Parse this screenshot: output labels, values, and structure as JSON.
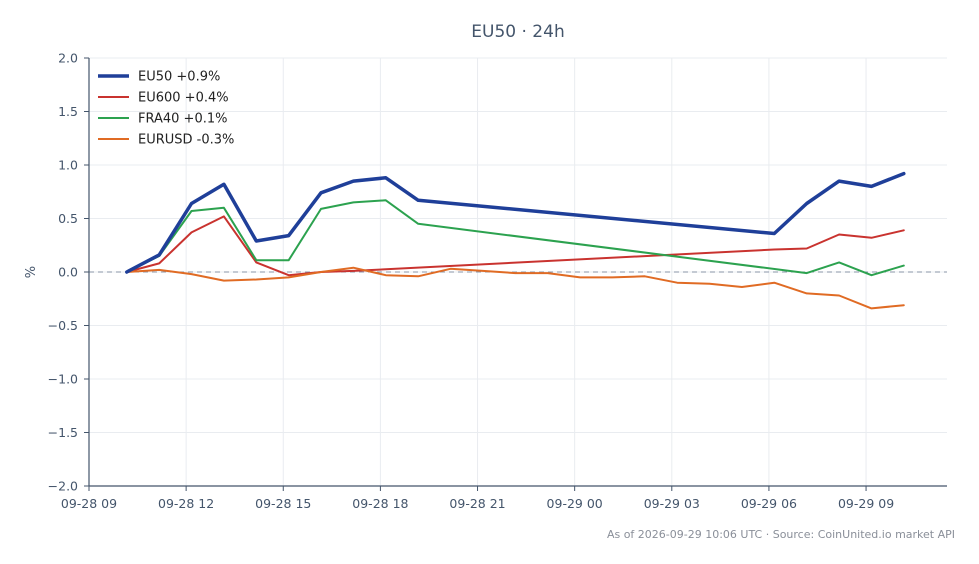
{
  "chart_data": {
    "type": "line",
    "title": "EU50 · 24h",
    "ylabel": "%",
    "xlabel": "",
    "ylim": [
      -2.0,
      2.0
    ],
    "yticks": [
      "2.0",
      "1.5",
      "1.0",
      "0.5",
      "0.0",
      "−0.5",
      "−1.0",
      "−1.5",
      "−2.0"
    ],
    "ytick_values": [
      2.0,
      1.5,
      1.0,
      0.5,
      0.0,
      -0.5,
      -1.0,
      -1.5,
      -2.0
    ],
    "xlim": [
      "09-28 09:00",
      "09-29 11:30"
    ],
    "xticks": [
      "09-28 09",
      "09-28 12",
      "09-28 15",
      "09-28 18",
      "09-28 21",
      "09-29 00",
      "09-29 03",
      "09-29 06",
      "09-29 09"
    ],
    "xtick_values": [
      "09-28 09:00",
      "09-28 12:00",
      "09-28 15:00",
      "09-28 18:00",
      "09-28 21:00",
      "09-29 00:00",
      "09-29 03:00",
      "09-29 06:00",
      "09-29 09:00"
    ],
    "grid": true,
    "legend_position": "top-left",
    "reference_line": 0.0,
    "series": [
      {
        "name": "EU50 +0.9%",
        "color": "#1f3f99",
        "width": "thick",
        "x": [
          "09-28 10:10",
          "09-28 11:10",
          "09-28 12:10",
          "09-28 13:10",
          "09-28 14:10",
          "09-28 15:10",
          "09-28 16:10",
          "09-28 17:10",
          "09-28 18:10",
          "09-28 19:10",
          "09-29 06:10",
          "09-29 07:10",
          "09-29 08:10",
          "09-29 09:10",
          "09-29 10:10"
        ],
        "y": [
          0.0,
          0.16,
          0.64,
          0.82,
          0.29,
          0.34,
          0.74,
          0.85,
          0.88,
          0.67,
          0.36,
          0.64,
          0.85,
          0.8,
          0.92
        ]
      },
      {
        "name": "EU600 +0.4%",
        "color": "#c9332f",
        "width": "normal",
        "x": [
          "09-28 10:10",
          "09-28 11:10",
          "09-28 12:10",
          "09-28 13:10",
          "09-28 14:10",
          "09-28 15:10",
          "09-28 16:10",
          "09-28 17:10",
          "09-29 06:10",
          "09-29 07:10",
          "09-29 08:10",
          "09-29 09:10",
          "09-29 10:10"
        ],
        "y": [
          0.0,
          0.08,
          0.37,
          0.52,
          0.09,
          -0.03,
          0.0,
          0.01,
          0.21,
          0.22,
          0.35,
          0.32,
          0.39
        ]
      },
      {
        "name": "FRA40 +0.1%",
        "color": "#2ca24f",
        "width": "normal",
        "x": [
          "09-28 10:10",
          "09-28 11:10",
          "09-28 12:10",
          "09-28 13:10",
          "09-28 14:10",
          "09-28 15:10",
          "09-28 16:10",
          "09-28 17:10",
          "09-28 18:10",
          "09-28 19:10",
          "09-29 07:10",
          "09-29 08:10",
          "09-29 09:10",
          "09-29 10:10"
        ],
        "y": [
          0.0,
          0.15,
          0.57,
          0.6,
          0.11,
          0.11,
          0.59,
          0.65,
          0.67,
          0.45,
          -0.01,
          0.09,
          -0.03,
          0.06
        ]
      },
      {
        "name": "EURUSD -0.3%",
        "color": "#e06b24",
        "width": "normal",
        "x": [
          "09-28 10:10",
          "09-28 11:10",
          "09-28 12:10",
          "09-28 13:10",
          "09-28 14:10",
          "09-28 15:10",
          "09-28 16:10",
          "09-28 17:10",
          "09-28 18:10",
          "09-28 19:10",
          "09-28 20:10",
          "09-28 21:10",
          "09-28 22:10",
          "09-28 23:10",
          "09-29 00:10",
          "09-29 01:10",
          "09-29 02:10",
          "09-29 03:10",
          "09-29 04:10",
          "09-29 05:10",
          "09-29 06:10",
          "09-29 07:10",
          "09-29 08:10",
          "09-29 09:10",
          "09-29 10:10"
        ],
        "y": [
          0.0,
          0.02,
          -0.02,
          -0.08,
          -0.07,
          -0.05,
          0.0,
          0.04,
          -0.03,
          -0.04,
          0.03,
          0.01,
          -0.01,
          -0.01,
          -0.05,
          -0.05,
          -0.04,
          -0.1,
          -0.11,
          -0.14,
          -0.1,
          -0.2,
          -0.22,
          -0.34,
          -0.31
        ]
      }
    ]
  },
  "footer": "As of 2026-09-29 10:06 UTC · Source: CoinUnited.io market API"
}
